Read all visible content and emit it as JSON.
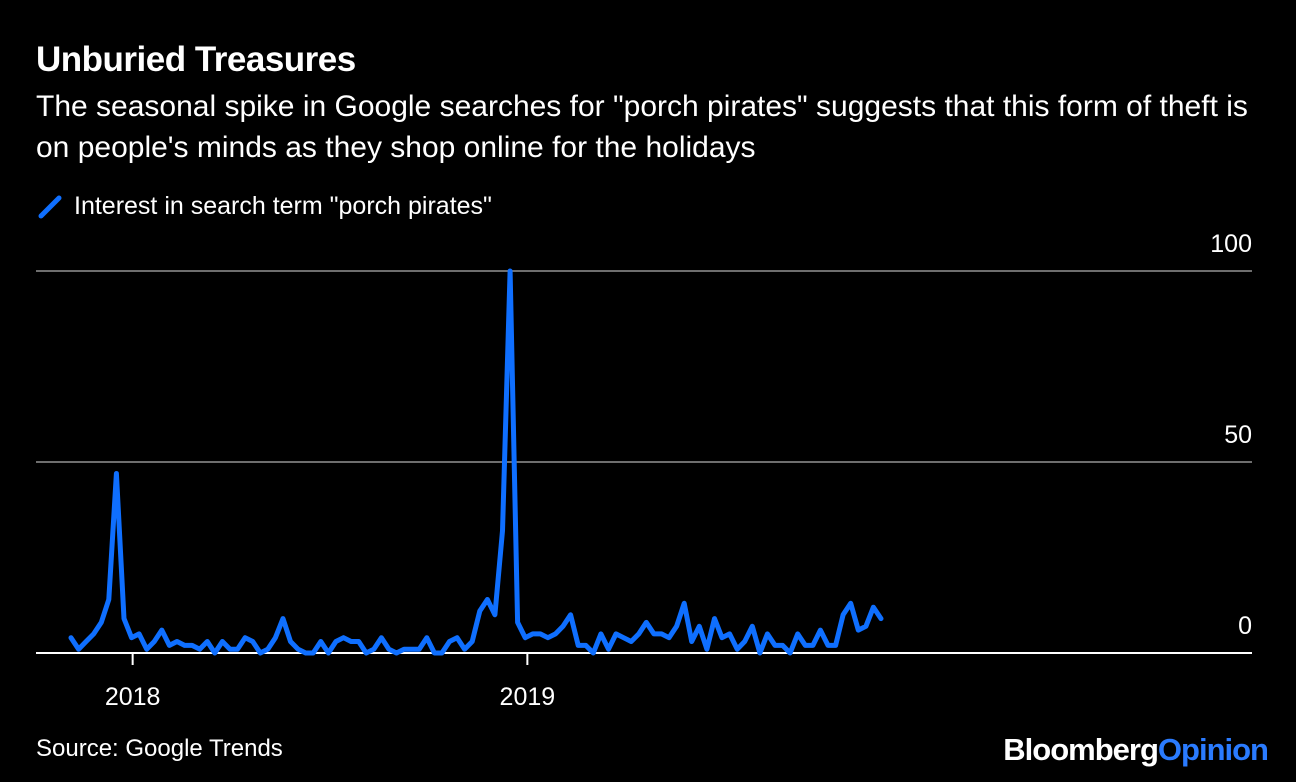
{
  "title": "Unburied Treasures",
  "subtitle": "The seasonal spike in Google searches for \"porch pirates\" suggests that this form of theft is on people's minds as they shop online for the holidays",
  "source": "Source: Google Trends",
  "brand": {
    "part1": "Bloomberg",
    "part2": "Opinion"
  },
  "colors": {
    "line": "#0f6fff",
    "background": "#000000",
    "grid": "#6e6e6e",
    "brand_accent": "#2a7bff"
  },
  "chart_data": {
    "type": "line",
    "series": [
      {
        "name": "Interest in search term \"porch pirates\"",
        "values": [
          4,
          1,
          3,
          5,
          8,
          14,
          47,
          9,
          4,
          5,
          1,
          3,
          6,
          2,
          3,
          2,
          2,
          1,
          3,
          0,
          3,
          1,
          1,
          4,
          3,
          0,
          1,
          4,
          9,
          3,
          1,
          0,
          0,
          3,
          0,
          3,
          4,
          3,
          3,
          0,
          1,
          4,
          1,
          0,
          1,
          1,
          1,
          4,
          0,
          0,
          3,
          4,
          1,
          3,
          11,
          14,
          10,
          32,
          100,
          8,
          4,
          5,
          5,
          4,
          5,
          7,
          10,
          2,
          2,
          0,
          5,
          1,
          5,
          4,
          3,
          5,
          8,
          5,
          5,
          4,
          7,
          13,
          3,
          7,
          1,
          9,
          4,
          5,
          1,
          3,
          7,
          0,
          5,
          2,
          2,
          0,
          5,
          2,
          2,
          6,
          2,
          2,
          10,
          13,
          6,
          7,
          12,
          9
        ]
      }
    ],
    "x_start": "2017-11-05",
    "x_interval": "1 week",
    "x_ticks": [
      "2018",
      "2019"
    ],
    "y_ticks": [
      0,
      50,
      100
    ],
    "ylim": [
      0,
      100
    ],
    "grid": "horizontal",
    "legend_position": "top-left"
  }
}
